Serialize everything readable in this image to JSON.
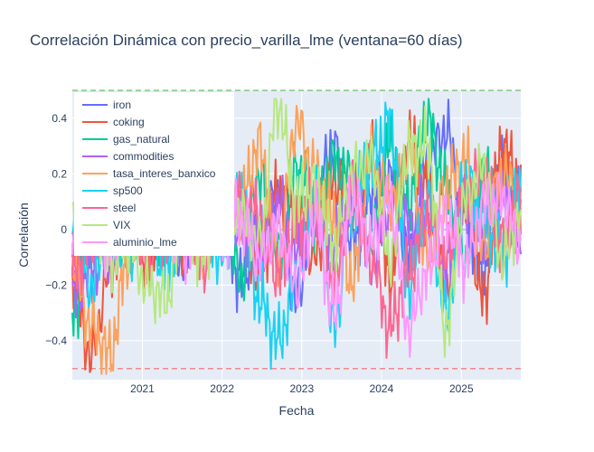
{
  "chart_data": {
    "type": "line",
    "title": "Correlación Dinámica con precio_varilla_lme (ventana=60 días)",
    "xlabel": "Fecha",
    "ylabel": "Correlación",
    "x_range": [
      "2020-02-15",
      "2025-09-30"
    ],
    "ylim": [
      -0.54,
      0.5
    ],
    "x_ticks": [
      {
        "date": "2021-01-01",
        "label": "2021"
      },
      {
        "date": "2022-01-01",
        "label": "2022"
      },
      {
        "date": "2023-01-01",
        "label": "2023"
      },
      {
        "date": "2024-01-01",
        "label": "2024"
      },
      {
        "date": "2025-01-01",
        "label": "2025"
      }
    ],
    "y_ticks": [
      {
        "value": 0.4,
        "label": "0.4"
      },
      {
        "value": 0.2,
        "label": "0.2"
      },
      {
        "value": 0,
        "label": "0"
      },
      {
        "value": -0.2,
        "label": "−0.2"
      },
      {
        "value": -0.4,
        "label": "−0.4"
      }
    ],
    "reference_lines": [
      {
        "value": 0.5,
        "color": "#7fc97f"
      },
      {
        "value": 0,
        "color": "#bbbbbb"
      },
      {
        "value": -0.5,
        "color": "#ef8a8a"
      }
    ],
    "grid": true,
    "legend_position": "top-left",
    "series": [
      {
        "name": "iron",
        "color": "#636efa",
        "values": [
          -0.1,
          0.05,
          -0.05,
          0.1,
          -0.05,
          0.02,
          -0.12,
          0.15,
          0.05,
          -0.18,
          0.0,
          0.12,
          -0.25,
          0.1,
          0.3,
          -0.05,
          0.12,
          0.2,
          -0.1,
          0.25,
          0.35,
          0.05,
          -0.15,
          0.22,
          0.1
        ]
      },
      {
        "name": "coking",
        "color": "#ef553b",
        "values": [
          -0.2,
          -0.45,
          -0.15,
          0.05,
          -0.1,
          0.08,
          -0.05,
          0.1,
          0.02,
          0.05,
          -0.15,
          0.12,
          0.05,
          -0.1,
          0.18,
          0.1,
          0.28,
          -0.18,
          0.32,
          0.15,
          -0.2,
          0.1,
          -0.25,
          0.3,
          0.15
        ]
      },
      {
        "name": "gas_natural",
        "color": "#00cc96",
        "values": [
          -0.3,
          -0.05,
          0.05,
          -0.1,
          0.1,
          -0.05,
          0.0,
          0.12,
          0.15,
          -0.18,
          0.2,
          -0.1,
          0.22,
          0.05,
          0.25,
          0.18,
          -0.05,
          0.3,
          0.1,
          0.4,
          0.15,
          -0.1,
          0.2,
          0.12,
          0.05
        ]
      },
      {
        "name": "commodities",
        "color": "#ab63fa",
        "values": [
          -0.25,
          -0.15,
          -0.05,
          0.05,
          0.1,
          -0.05,
          0.0,
          0.05,
          -0.02,
          0.02,
          -0.08,
          0.1,
          -0.1,
          0.08,
          -0.05,
          0.12,
          -0.12,
          0.08,
          0.02,
          0.05,
          -0.15,
          0.1,
          0.0,
          0.12,
          -0.05
        ]
      },
      {
        "name": "tasa_interes_banxico",
        "color": "#ffa15a",
        "values": [
          -0.1,
          -0.35,
          -0.45,
          -0.1,
          0.1,
          -0.05,
          0.05,
          -0.1,
          0.25,
          0.1,
          0.3,
          -0.1,
          0.38,
          0.2,
          0.05,
          -0.18,
          0.25,
          0.1,
          0.28,
          -0.1,
          0.15,
          0.25,
          -0.05,
          0.2,
          0.1
        ]
      },
      {
        "name": "sp500",
        "color": "#19d3f3",
        "values": [
          0.05,
          -0.2,
          0.0,
          -0.05,
          0.05,
          -0.15,
          0.1,
          0.0,
          -0.1,
          0.12,
          -0.25,
          -0.4,
          -0.2,
          0.15,
          -0.35,
          0.1,
          0.25,
          0.38,
          -0.2,
          0.1,
          -0.3,
          0.18,
          0.05,
          -0.1,
          0.15
        ]
      },
      {
        "name": "steel",
        "color": "#ff6692",
        "values": [
          -0.15,
          -0.05,
          0.1,
          0.05,
          -0.1,
          0.0,
          0.08,
          -0.12,
          0.02,
          0.1,
          0.05,
          -0.15,
          0.02,
          0.1,
          -0.2,
          0.15,
          -0.1,
          -0.35,
          -0.15,
          0.05,
          -0.1,
          0.12,
          0.2,
          -0.05,
          0.1
        ]
      },
      {
        "name": "VIX",
        "color": "#b6e880",
        "values": [
          0.1,
          0.05,
          -0.1,
          -0.05,
          -0.2,
          -0.25,
          0.05,
          -0.1,
          0.12,
          0.05,
          -0.05,
          0.45,
          0.1,
          0.15,
          -0.05,
          0.2,
          0.25,
          -0.1,
          0.28,
          0.3,
          -0.35,
          0.1,
          0.22,
          -0.1,
          0.05
        ]
      },
      {
        "name": "aluminio_lme",
        "color": "#ff97ff",
        "values": [
          0.0,
          0.1,
          -0.05,
          0.05,
          0.12,
          0.02,
          -0.08,
          0.1,
          -0.02,
          0.05,
          -0.1,
          0.0,
          -0.2,
          0.05,
          -0.3,
          0.12,
          -0.05,
          0.1,
          -0.35,
          -0.15,
          0.05,
          -0.12,
          0.08,
          0.12,
          -0.05
        ]
      }
    ]
  }
}
